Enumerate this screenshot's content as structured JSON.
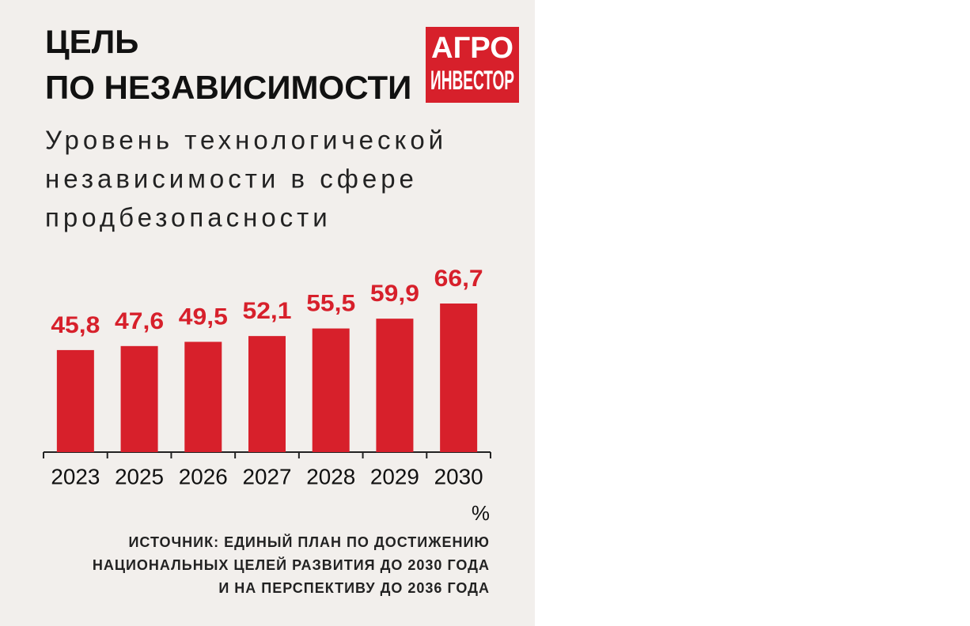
{
  "chart_data": {
    "type": "bar",
    "title": [
      "ЦЕЛЬ",
      "ПО НЕЗАВИСИМОСТИ"
    ],
    "subtitle": [
      "Уровень технологической",
      "независимости в сфере",
      "продбезопасности"
    ],
    "logo": [
      "АГРО",
      "ИНВЕСТОР"
    ],
    "categories": [
      "2023",
      "2025",
      "2026",
      "2027",
      "2028",
      "2029",
      "2030"
    ],
    "values": [
      45.8,
      47.6,
      49.5,
      52.1,
      55.5,
      59.9,
      66.7
    ],
    "value_labels": [
      "45,8",
      "47,6",
      "49,5",
      "52,1",
      "55,5",
      "59,9",
      "66,7"
    ],
    "unit": "%",
    "source": [
      "ИСТОЧНИК: ЕДИНЫЙ ПЛАН ПО ДОСТИЖЕНИЮ",
      "НАЦИОНАЛЬНЫХ ЦЕЛЕЙ РАЗВИТИЯ ДО 2030 ГОДА",
      "И НА ПЕРСПЕКТИВУ ДО 2036 ГОДА"
    ],
    "color": "#d7202b"
  }
}
